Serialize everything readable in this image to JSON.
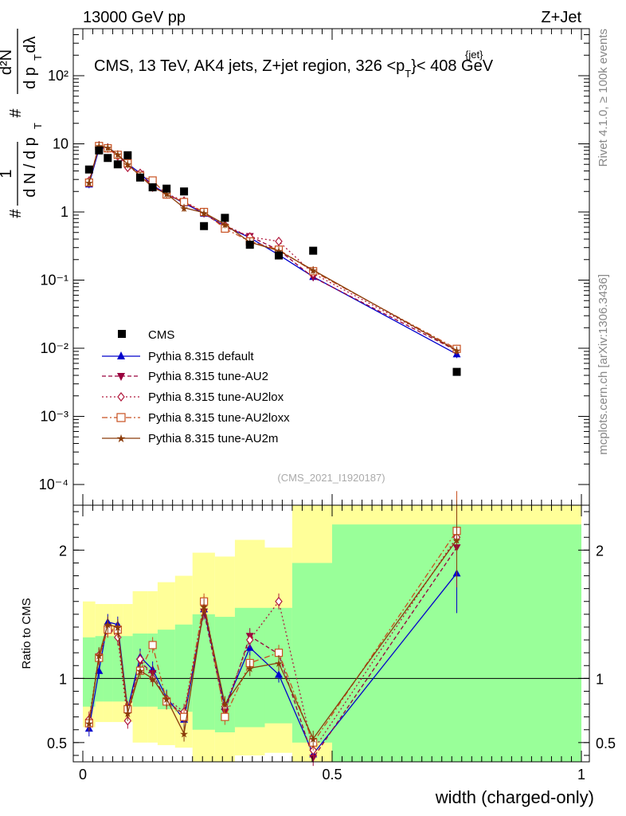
{
  "header": {
    "left": "13000 GeV pp",
    "right": "Z+Jet",
    "title": "CMS, 13 TeV, AK4 jets, Z+jet region, 326 <p",
    "title_sup": "{jet}",
    "title_sub": "T",
    "title_end": "}< 408 GeV"
  },
  "side": {
    "rivet": "Rivet 4.1.0, ≥ 100k events",
    "mcplots": "mcplots.cern.ch [arXiv:1306.3436]"
  },
  "watermark": "(CMS_2021_I1920187)",
  "ylabel_main": {
    "hash1": "#",
    "frac1_num": "1",
    "frac1_den": "d N / d p",
    "hash2": "#",
    "frac2_num": "d²N",
    "frac2_den": "d p",
    "sub_t": "T",
    "dlambda": "dλ"
  },
  "ratio_ylabel": "Ratio to CMS",
  "xlabel": "width (charged-only)",
  "colors": {
    "data": "#000000",
    "default": "#0000cc",
    "au2": "#99003d",
    "au2lox": "#b0183c",
    "au2loxx": "#c85020",
    "au2m": "#8b3c0a",
    "band_green": "#99ff99",
    "band_yellow": "#ffff99"
  },
  "chart_data": {
    "type": "scatter",
    "title": "CMS, 13 TeV, AK4 jets, Z+jet region, 326 <p_T^{jet}< 408 GeV",
    "xlabel": "width (charged-only)",
    "ylabel": "1/(dN/dp_T) d²N/(dp_T dλ)",
    "xlim": [
      0,
      1.0
    ],
    "ylim": [
      5e-05,
      250
    ],
    "yscale": "log",
    "x_ticks": [
      "0",
      "0.5",
      "1"
    ],
    "y_ticks": [
      "10⁻⁴",
      "10⁻³",
      "10⁻²",
      "10⁻¹",
      "1",
      "10",
      "10²"
    ],
    "x": [
      0.0125,
      0.0325,
      0.05,
      0.07,
      0.09,
      0.115,
      0.14,
      0.168,
      0.203,
      0.243,
      0.285,
      0.335,
      0.393,
      0.462,
      0.75
    ],
    "data": [
      4.2,
      8.0,
      6.2,
      5.0,
      6.8,
      3.2,
      2.3,
      2.2,
      2.0,
      0.62,
      0.82,
      0.33,
      0.23,
      0.27,
      0.0045
    ],
    "series": [
      {
        "name": "Pythia 8.315 default",
        "key": "default",
        "values": [
          2.55,
          8.4,
          8.9,
          7.0,
          5.1,
          3.7,
          2.45,
          1.85,
          1.35,
          0.95,
          0.62,
          0.42,
          0.235,
          0.112,
          0.0082
        ]
      },
      {
        "name": "Pythia 8.315 tune-AU2",
        "key": "au2",
        "values": [
          2.75,
          9.3,
          8.5,
          6.8,
          4.9,
          3.6,
          2.4,
          1.8,
          1.4,
          0.95,
          0.6,
          0.44,
          0.275,
          0.11,
          0.0092
        ]
      },
      {
        "name": "Pythia 8.315 tune-AU2lox",
        "key": "au2lox",
        "values": [
          2.85,
          9.4,
          8.7,
          6.6,
          4.5,
          3.7,
          2.3,
          1.85,
          1.45,
          0.98,
          0.64,
          0.43,
          0.37,
          0.125,
          0.0095
        ]
      },
      {
        "name": "Pythia 8.315 tune-AU2loxx",
        "key": "au2loxx",
        "values": [
          2.7,
          9.3,
          8.6,
          6.9,
          5.2,
          3.4,
          2.9,
          1.8,
          1.4,
          1.0,
          0.57,
          0.37,
          0.28,
          0.135,
          0.0098
        ]
      },
      {
        "name": "Pythia 8.315 tune-AU2m",
        "key": "au2m",
        "values": [
          2.7,
          9.4,
          8.8,
          7.0,
          5.0,
          3.4,
          2.3,
          1.85,
          1.15,
          0.98,
          0.66,
          0.36,
          0.27,
          0.14,
          0.0093
        ]
      }
    ],
    "legend": [
      "CMS",
      "Pythia 8.315 default",
      "Pythia 8.315 tune-AU2",
      "Pythia 8.315 tune-AU2lox",
      "Pythia 8.315 tune-AU2loxx",
      "Pythia 8.315 tune-AU2m"
    ],
    "legend_position": "lower-left",
    "ratio": {
      "ylabel": "Ratio to CMS",
      "ylim": [
        0.35,
        2.35
      ],
      "y_ticks": [
        "0.5",
        "1",
        "2"
      ],
      "bins": [
        [
          0,
          0.025
        ],
        [
          0.025,
          0.04
        ],
        [
          0.04,
          0.06
        ],
        [
          0.06,
          0.08
        ],
        [
          0.08,
          0.1
        ],
        [
          0.1,
          0.13
        ],
        [
          0.13,
          0.15
        ],
        [
          0.15,
          0.185
        ],
        [
          0.185,
          0.22
        ],
        [
          0.22,
          0.265
        ],
        [
          0.265,
          0.305
        ],
        [
          0.305,
          0.365
        ],
        [
          0.365,
          0.42
        ],
        [
          0.42,
          0.5
        ],
        [
          0.5,
          1.0
        ]
      ],
      "band_green": [
        [
          0.78,
          1.32
        ],
        [
          0.82,
          1.33
        ],
        [
          0.82,
          1.33
        ],
        [
          0.82,
          1.33
        ],
        [
          0.82,
          1.33
        ],
        [
          0.78,
          1.35
        ],
        [
          0.78,
          1.35
        ],
        [
          0.76,
          1.38
        ],
        [
          0.74,
          1.42
        ],
        [
          0.6,
          1.5
        ],
        [
          0.58,
          1.48
        ],
        [
          0.62,
          1.55
        ],
        [
          0.65,
          1.55
        ],
        [
          0.5,
          1.9
        ],
        [
          0.35,
          2.2
        ]
      ],
      "band_yellow": [
        [
          0.62,
          1.6
        ],
        [
          0.66,
          1.58
        ],
        [
          0.66,
          1.58
        ],
        [
          0.66,
          1.58
        ],
        [
          0.66,
          1.58
        ],
        [
          0.5,
          1.68
        ],
        [
          0.5,
          1.68
        ],
        [
          0.48,
          1.75
        ],
        [
          0.46,
          1.8
        ],
        [
          0.35,
          1.98
        ],
        [
          0.35,
          1.95
        ],
        [
          0.4,
          2.08
        ],
        [
          0.42,
          2.02
        ],
        [
          0.35,
          2.35
        ],
        [
          0.35,
          2.35
        ]
      ],
      "series": [
        {
          "key": "default",
          "values": [
            0.61,
            1.06,
            1.44,
            1.42,
            0.76,
            1.17,
            1.07,
            0.85,
            0.68,
            1.54,
            0.78,
            1.24,
            1.03,
            0.41,
            1.82
          ]
        },
        {
          "key": "au2",
          "values": [
            0.66,
            1.17,
            1.38,
            1.36,
            0.74,
            1.13,
            1.04,
            0.82,
            0.72,
            1.52,
            0.74,
            1.33,
            1.19,
            0.38,
            2.02
          ]
        },
        {
          "key": "au2lox",
          "values": [
            0.68,
            1.18,
            1.4,
            1.32,
            0.67,
            1.15,
            1.0,
            0.84,
            0.74,
            1.58,
            0.78,
            1.3,
            1.6,
            0.44,
            2.1
          ]
        },
        {
          "key": "au2loxx",
          "values": [
            0.65,
            1.16,
            1.38,
            1.38,
            0.76,
            1.06,
            1.26,
            0.82,
            0.7,
            1.6,
            0.7,
            1.12,
            1.2,
            0.5,
            2.15
          ]
        },
        {
          "key": "au2m",
          "values": [
            0.65,
            1.18,
            1.42,
            1.4,
            0.73,
            1.06,
            1.0,
            0.84,
            0.57,
            1.56,
            0.8,
            1.08,
            1.12,
            0.53,
            2.08
          ]
        }
      ]
    }
  }
}
